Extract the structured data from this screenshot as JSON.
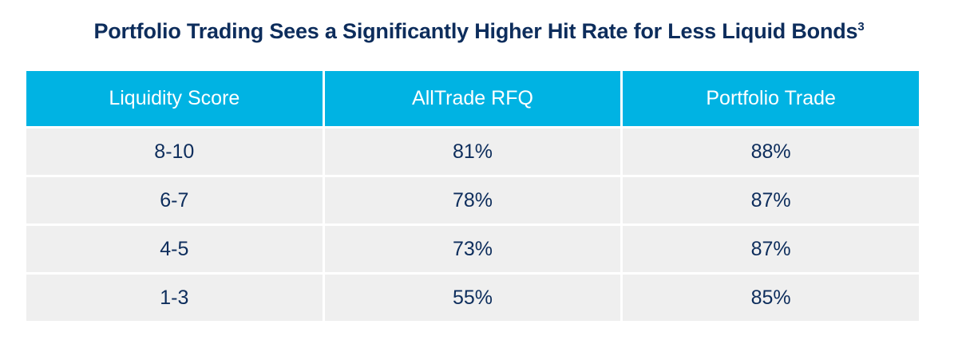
{
  "chart_data": {
    "type": "table",
    "title": "Portfolio Trading Sees a Significantly Higher Hit Rate for Less Liquid Bonds",
    "title_superscript": "3",
    "columns": [
      "Liquidity Score",
      "AllTrade RFQ",
      "Portfolio Trade"
    ],
    "rows": [
      [
        "8-10",
        "81%",
        "88%"
      ],
      [
        "6-7",
        "78%",
        "87%"
      ],
      [
        "4-5",
        "73%",
        "87%"
      ],
      [
        "1-3",
        "55%",
        "85%"
      ]
    ],
    "series": [
      {
        "name": "AllTrade RFQ",
        "values": [
          81,
          78,
          73,
          55
        ]
      },
      {
        "name": "Portfolio Trade",
        "values": [
          88,
          87,
          87,
          85
        ]
      }
    ],
    "categories": [
      "8-10",
      "6-7",
      "4-5",
      "1-3"
    ],
    "unit": "%"
  },
  "colors": {
    "title": "#0d2d5c",
    "header_bg": "#00b3e3",
    "header_text": "#ffffff",
    "cell_bg": "#efefef",
    "cell_text": "#0d2d5c"
  }
}
